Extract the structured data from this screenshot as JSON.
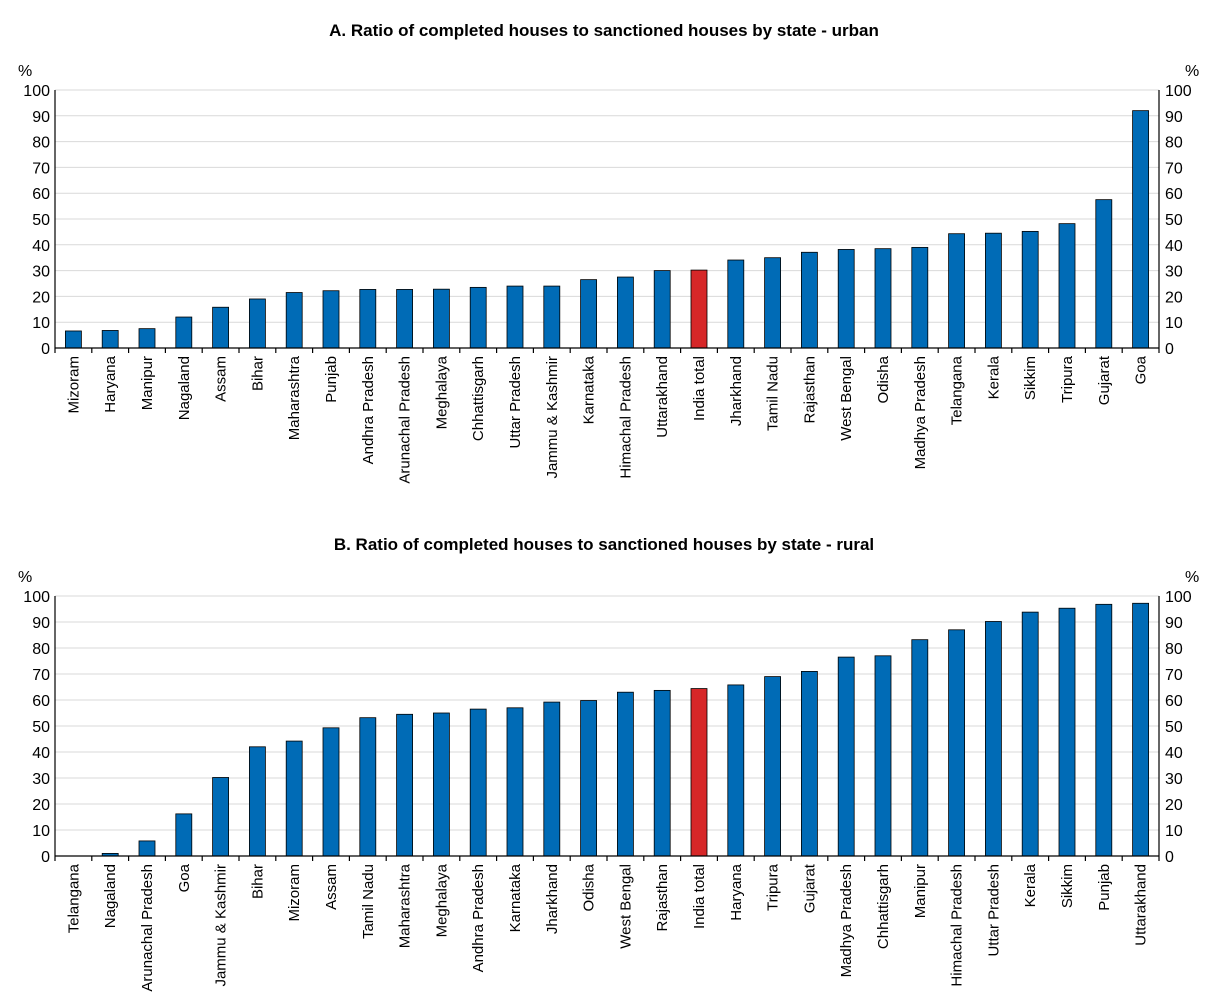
{
  "colors": {
    "bar": "#006bb6",
    "highlight": "#d62728",
    "grid": "#d9d9d9",
    "bar_outline": "#000000"
  },
  "chart_data": [
    {
      "type": "bar",
      "title": "A. Ratio of completed houses to sanctioned houses by state - urban",
      "ylabel_left": "%",
      "ylabel_right": "%",
      "ylim": [
        0,
        100
      ],
      "yticks": [
        0,
        10,
        20,
        30,
        40,
        50,
        60,
        70,
        80,
        90,
        100
      ],
      "grid": true,
      "highlight_category": "India total",
      "categories": [
        "Mizoram",
        "Haryana",
        "Manipur",
        "Nagaland",
        "Assam",
        "Bihar",
        "Maharashtra",
        "Punjab",
        "Andhra Pradesh",
        "Arunachal Pradesh",
        "Meghalaya",
        "Chhattisgarh",
        "Uttar Pradesh",
        "Jammu & Kashmir",
        "Karnataka",
        "Himachal Pradesh",
        "Uttarakhand",
        "India total",
        "Jharkhand",
        "Tamil Nadu",
        "Rajasthan",
        "West Bengal",
        "Odisha",
        "Madhya Pradesh",
        "Telangana",
        "Kerala",
        "Sikkim",
        "Tripura",
        "Gujarat",
        "Goa"
      ],
      "values": [
        6.6,
        6.8,
        7.5,
        12,
        15.8,
        19,
        21.5,
        22.2,
        22.7,
        22.7,
        22.8,
        23.5,
        24,
        24,
        26.5,
        27.5,
        30,
        30.2,
        34.1,
        35,
        37.1,
        38.2,
        38.5,
        39,
        44.3,
        44.5,
        45.2,
        48.2,
        57.5,
        92
      ]
    },
    {
      "type": "bar",
      "title": "B. Ratio of completed houses to sanctioned houses by state - rural",
      "ylabel_left": "%",
      "ylabel_right": "%",
      "ylim": [
        0,
        100
      ],
      "yticks": [
        0,
        10,
        20,
        30,
        40,
        50,
        60,
        70,
        80,
        90,
        100
      ],
      "grid": true,
      "highlight_category": "India total",
      "categories": [
        "Telangana",
        "Nagaland",
        "Arunachal Pradesh",
        "Goa",
        "Jammu & Kashmir",
        "Bihar",
        "Mizoram",
        "Assam",
        "Tamil Nadu",
        "Maharashtra",
        "Meghalaya",
        "Andhra Pradesh",
        "Karnataka",
        "Jharkhand",
        "Odisha",
        "West Bengal",
        "Rajasthan",
        "India total",
        "Haryana",
        "Tripura",
        "Gujarat",
        "Madhya Pradesh",
        "Chhattisgarh",
        "Manipur",
        "Himachal Pradesh",
        "Uttar Pradesh",
        "Kerala",
        "Sikkim",
        "Punjab",
        "Uttarakhand"
      ],
      "values": [
        0,
        1,
        5.8,
        16.2,
        30.2,
        42,
        44.2,
        49.3,
        53.2,
        54.5,
        55,
        56.5,
        57,
        59.2,
        59.8,
        63,
        63.7,
        64.4,
        65.8,
        69,
        71,
        76.5,
        77,
        83.2,
        87,
        90.2,
        93.8,
        95.3,
        96.8,
        97.2
      ]
    }
  ]
}
